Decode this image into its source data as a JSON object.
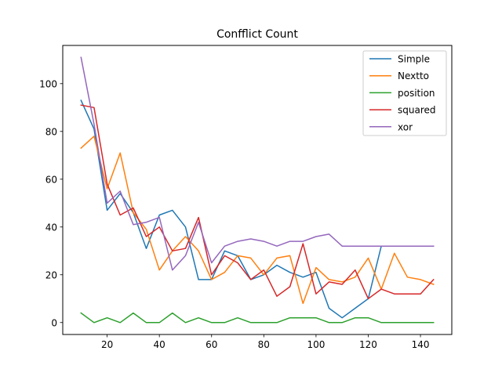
{
  "chart_data": {
    "type": "line",
    "title": "Confflict Count",
    "xlabel": "",
    "ylabel": "",
    "xlim": [
      3,
      152
    ],
    "ylim": [
      -5,
      116
    ],
    "xticks": [
      20,
      40,
      60,
      80,
      100,
      120,
      140
    ],
    "yticks": [
      0,
      20,
      40,
      60,
      80,
      100
    ],
    "grid": false,
    "legend_position": "top-right",
    "x": [
      10,
      15,
      20,
      25,
      30,
      35,
      40,
      45,
      50,
      55,
      60,
      65,
      70,
      75,
      80,
      85,
      90,
      95,
      100,
      105,
      110,
      115,
      120,
      125,
      130,
      135,
      140,
      145
    ],
    "series": [
      {
        "name": "Simple",
        "color": "#1f77b4",
        "values": [
          93,
          81,
          47,
          54,
          46,
          31,
          45,
          47,
          40,
          18,
          18,
          30,
          28,
          18,
          20,
          24,
          21,
          19,
          21,
          6,
          2,
          6,
          10,
          32,
          32,
          32,
          32,
          32
        ]
      },
      {
        "name": "Nextto",
        "color": "#ff7f0e",
        "values": [
          73,
          78,
          56,
          71,
          46,
          39,
          22,
          30,
          36,
          30,
          18,
          21,
          28,
          27,
          20,
          27,
          28,
          8,
          23,
          18,
          17,
          19,
          27,
          14,
          29,
          19,
          18,
          16
        ]
      },
      {
        "name": "position",
        "color": "#2ca02c",
        "values": [
          4,
          0,
          2,
          0,
          4,
          0,
          0,
          4,
          0,
          2,
          0,
          0,
          2,
          0,
          0,
          0,
          2,
          2,
          2,
          0,
          0,
          2,
          2,
          0,
          0,
          0,
          0,
          0
        ]
      },
      {
        "name": "squared",
        "color": "#d62728",
        "values": [
          91,
          90,
          58,
          45,
          48,
          36,
          40,
          30,
          31,
          44,
          20,
          28,
          25,
          18,
          22,
          11,
          15,
          33,
          12,
          17,
          16,
          22,
          10,
          14,
          12,
          12,
          12,
          18
        ]
      },
      {
        "name": "xor",
        "color": "#9467bd",
        "values": [
          111,
          83,
          50,
          55,
          41,
          42,
          44,
          22,
          28,
          42,
          25,
          32,
          34,
          35,
          34,
          32,
          34,
          34,
          36,
          37,
          32,
          32,
          32,
          32,
          32,
          32,
          32,
          32
        ]
      }
    ]
  }
}
